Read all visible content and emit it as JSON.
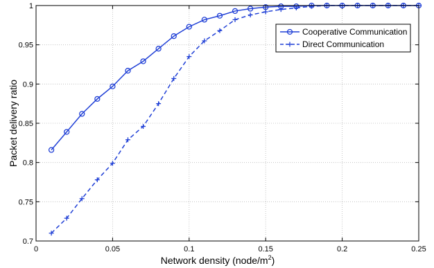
{
  "chart_data": {
    "type": "line",
    "xlabel": "Network density (node/m",
    "xlabel_sup": "2",
    "xlabel_close": ")",
    "ylabel": "Packet delivery ratio",
    "xlim": [
      0,
      0.25
    ],
    "ylim": [
      0.7,
      1.0
    ],
    "x_ticks": [
      0,
      0.05,
      0.1,
      0.15,
      0.2,
      0.25
    ],
    "x_tick_labels": [
      "0",
      "0.05",
      "0.1",
      "0.15",
      "0.2",
      "0.25"
    ],
    "y_ticks": [
      0.7,
      0.75,
      0.8,
      0.85,
      0.9,
      0.95,
      1.0
    ],
    "y_tick_labels": [
      "0.7",
      "0.75",
      "0.8",
      "0.85",
      "0.9",
      "0.95",
      "1"
    ],
    "grid": true,
    "legend_position": "top-right",
    "color": "#1f3fd6",
    "x": [
      0.01,
      0.02,
      0.03,
      0.04,
      0.05,
      0.06,
      0.07,
      0.08,
      0.09,
      0.1,
      0.11,
      0.12,
      0.13,
      0.14,
      0.15,
      0.16,
      0.17,
      0.18,
      0.19,
      0.2,
      0.21,
      0.22,
      0.23,
      0.24,
      0.25
    ],
    "series": [
      {
        "name": "Cooperative Communication",
        "style": "solid",
        "marker": "circle",
        "values": [
          0.816,
          0.839,
          0.862,
          0.881,
          0.897,
          0.917,
          0.929,
          0.945,
          0.961,
          0.973,
          0.982,
          0.987,
          0.993,
          0.996,
          0.998,
          0.999,
          0.999,
          1.0,
          1.0,
          1.0,
          1.0,
          1.0,
          1.0,
          1.0,
          1.0
        ]
      },
      {
        "name": "Direct Communication",
        "style": "dashed",
        "marker": "plus",
        "values": [
          0.71,
          0.729,
          0.754,
          0.778,
          0.799,
          0.829,
          0.846,
          0.875,
          0.907,
          0.935,
          0.955,
          0.968,
          0.982,
          0.988,
          0.992,
          0.995,
          0.997,
          0.999,
          1.0,
          1.0,
          1.0,
          1.0,
          1.0,
          1.0,
          1.0
        ]
      }
    ]
  }
}
